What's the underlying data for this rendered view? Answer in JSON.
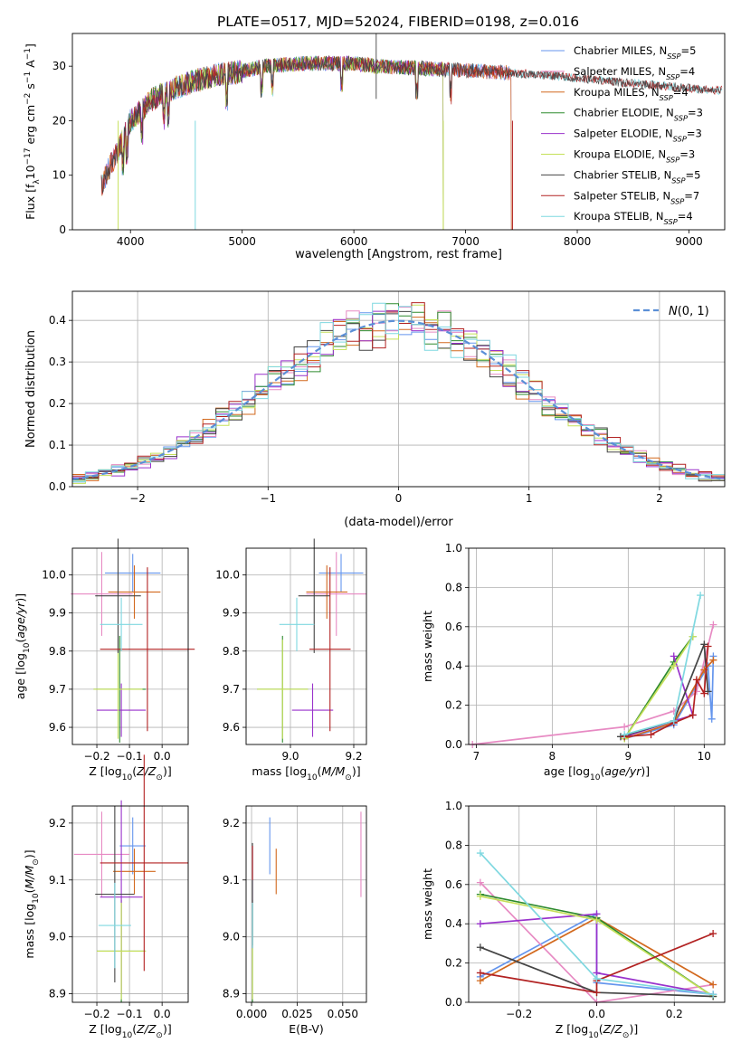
{
  "figure_title": "PLATE=0517, MJD=52024, FIBERID=0198, z=0.016",
  "colors": {
    "chabrier_miles": "#6495ed",
    "salpeter_miles": "#e78ac3",
    "kroupa_miles": "#d2691e",
    "chabrier_elodie": "#2e8b2e",
    "salpeter_elodie": "#9932cc",
    "kroupa_elodie": "#c5e05a",
    "chabrier_stelib": "#444444",
    "salpeter_stelib": "#b22222",
    "kroupa_stelib": "#7fd8e0",
    "normal_curve": "#5b8fd6",
    "grid": "#b0b0b0"
  },
  "chart_data": [
    {
      "id": "spectrum",
      "type": "line",
      "xlabel": "wavelength [Angstrom, rest frame]",
      "ylabel": "Flux [f_λ 10^-17 erg cm^-2 s^-1 A^-1]",
      "xlim": [
        3480,
        9320
      ],
      "ylim": [
        0,
        36
      ],
      "xticks": [
        4000,
        5000,
        6000,
        7000,
        8000,
        9000
      ],
      "yticks": [
        0,
        10,
        20,
        30
      ],
      "grid": false,
      "legend_position": "top-right",
      "legend": [
        {
          "label": "Chabrier MILES, N",
          "sub": "SSP",
          "suffix": "=5",
          "color_key": "chabrier_miles"
        },
        {
          "label": "Salpeter MILES, N",
          "sub": "SSP",
          "suffix": "=4",
          "color_key": "salpeter_miles"
        },
        {
          "label": "Kroupa MILES, N",
          "sub": "SSP",
          "suffix": "=4",
          "color_key": "kroupa_miles"
        },
        {
          "label": "Chabrier ELODIE, N",
          "sub": "SSP",
          "suffix": "=3",
          "color_key": "chabrier_elodie"
        },
        {
          "label": "Salpeter ELODIE, N",
          "sub": "SSP",
          "suffix": "=3",
          "color_key": "salpeter_elodie"
        },
        {
          "label": "Kroupa ELODIE, N",
          "sub": "SSP",
          "suffix": "=3",
          "color_key": "kroupa_elodie"
        },
        {
          "label": "Chabrier STELIB, N",
          "sub": "SSP",
          "suffix": "=5",
          "color_key": "chabrier_stelib"
        },
        {
          "label": "Salpeter STELIB, N",
          "sub": "SSP",
          "suffix": "=7",
          "color_key": "salpeter_stelib"
        },
        {
          "label": "Kroupa STELIB, N",
          "sub": "SSP",
          "suffix": "=4",
          "color_key": "kroupa_stelib"
        }
      ],
      "continuum": [
        [
          3740,
          8
        ],
        [
          3800,
          11
        ],
        [
          3900,
          15
        ],
        [
          4000,
          20
        ],
        [
          4100,
          22
        ],
        [
          4200,
          24
        ],
        [
          4400,
          26
        ],
        [
          4600,
          27.5
        ],
        [
          4800,
          28.5
        ],
        [
          5000,
          29
        ],
        [
          5200,
          30
        ],
        [
          5400,
          30.3
        ],
        [
          5600,
          30.5
        ],
        [
          5800,
          30.5
        ],
        [
          6000,
          30.5
        ],
        [
          6200,
          30
        ],
        [
          6400,
          29.8
        ],
        [
          6600,
          29.6
        ],
        [
          6800,
          29.4
        ],
        [
          7000,
          29.2
        ],
        [
          7200,
          29
        ],
        [
          7400,
          28.8
        ],
        [
          7600,
          28.5
        ],
        [
          7800,
          28.2
        ],
        [
          8000,
          27.8
        ],
        [
          8200,
          27.4
        ],
        [
          8400,
          27
        ],
        [
          8600,
          26.7
        ],
        [
          8800,
          26.3
        ],
        [
          9000,
          26
        ],
        [
          9200,
          25.6
        ]
      ],
      "series_extent": [
        {
          "key": "chabrier_miles",
          "x": [
            3740,
            7410
          ]
        },
        {
          "key": "salpeter_miles",
          "x": [
            3740,
            7410
          ]
        },
        {
          "key": "kroupa_miles",
          "x": [
            3740,
            7410
          ]
        },
        {
          "key": "chabrier_elodie",
          "x": [
            3900,
            6800
          ]
        },
        {
          "key": "salpeter_elodie",
          "x": [
            3900,
            6800
          ]
        },
        {
          "key": "kroupa_elodie",
          "x": [
            3900,
            6800
          ]
        },
        {
          "key": "chabrier_stelib",
          "x": [
            3740,
            9300
          ]
        },
        {
          "key": "salpeter_stelib",
          "x": [
            3740,
            9300
          ]
        },
        {
          "key": "kroupa_stelib",
          "x": [
            3740,
            9300
          ]
        }
      ]
    },
    {
      "id": "residuals",
      "type": "bar",
      "xlabel": "(data-model)/error",
      "ylabel": "Normed distribution",
      "xlim": [
        -2.5,
        2.5
      ],
      "ylim": [
        0,
        0.47
      ],
      "xticks": [
        -2,
        -1,
        0,
        1,
        2
      ],
      "yticks": [
        0.0,
        0.1,
        0.2,
        0.3,
        0.4
      ],
      "grid": true,
      "legend_position": "top-right",
      "legend_label": "N(0,1)",
      "bin_width": 0.1,
      "bins_start": -2.5,
      "envelope": "gaussian",
      "n_series": 9
    },
    {
      "id": "age_vs_Z",
      "type": "errorbar",
      "xlabel": "Z [log10(Z/Z⊙)]",
      "ylabel": "age [log10(age/yr)]",
      "xlim": [
        -0.275,
        0.08
      ],
      "ylim": [
        9.555,
        10.07
      ],
      "xticks": [
        -0.2,
        -0.1,
        0.0
      ],
      "yticks": [
        9.6,
        9.7,
        9.8,
        9.9,
        10.0
      ],
      "grid": true,
      "points": [
        {
          "key": "chabrier_miles",
          "x": -0.09,
          "xerr": 0.085,
          "y": 10.005,
          "yerr": 0.05
        },
        {
          "key": "salpeter_miles",
          "x": -0.185,
          "xerr": 0.095,
          "y": 9.95,
          "yerr": 0.11
        },
        {
          "key": "kroupa_miles",
          "x": -0.085,
          "xerr": 0.08,
          "y": 9.955,
          "yerr": 0.07
        },
        {
          "key": "chabrier_elodie",
          "x": -0.13,
          "xerr": 0.08,
          "y": 9.7,
          "yerr": 0.14
        },
        {
          "key": "salpeter_elodie",
          "x": -0.125,
          "xerr": 0.075,
          "y": 9.645,
          "yerr": 0.07
        },
        {
          "key": "kroupa_elodie",
          "x": -0.135,
          "xerr": 0.075,
          "y": 9.7,
          "yerr": 0.13
        },
        {
          "key": "chabrier_stelib",
          "x": -0.135,
          "xerr": 0.07,
          "y": 9.945,
          "yerr": 0.15
        },
        {
          "key": "salpeter_stelib",
          "x": -0.045,
          "xerr": 0.145,
          "y": 9.805,
          "yerr": 0.215
        },
        {
          "key": "kroupa_stelib",
          "x": -0.125,
          "xerr": 0.065,
          "y": 9.87,
          "yerr": 0.07
        }
      ]
    },
    {
      "id": "age_vs_mass",
      "type": "errorbar",
      "xlabel": "mass [log10(M/M⊙)]",
      "ylabel": "",
      "xlim": [
        8.86,
        9.24
      ],
      "ylim": [
        9.555,
        10.07
      ],
      "xticks": [
        9.0,
        9.2
      ],
      "yticks": [
        9.6,
        9.7,
        9.8,
        9.9,
        10.0
      ],
      "grid": true,
      "points": [
        {
          "key": "chabrier_miles",
          "x": 9.16,
          "xerr": 0.07,
          "y": 10.005,
          "yerr": 0.05
        },
        {
          "key": "salpeter_miles",
          "x": 9.145,
          "xerr": 0.095,
          "y": 9.95,
          "yerr": 0.11
        },
        {
          "key": "kroupa_miles",
          "x": 9.115,
          "xerr": 0.065,
          "y": 9.955,
          "yerr": 0.07
        },
        {
          "key": "chabrier_elodie",
          "x": 8.975,
          "xerr": 0.08,
          "y": 9.7,
          "yerr": 0.14
        },
        {
          "key": "salpeter_elodie",
          "x": 9.07,
          "xerr": 0.065,
          "y": 9.645,
          "yerr": 0.07
        },
        {
          "key": "kroupa_elodie",
          "x": 8.975,
          "xerr": 0.08,
          "y": 9.7,
          "yerr": 0.13
        },
        {
          "key": "chabrier_stelib",
          "x": 9.075,
          "xerr": 0.05,
          "y": 9.945,
          "yerr": 0.15
        },
        {
          "key": "salpeter_stelib",
          "x": 9.125,
          "xerr": 0.065,
          "y": 9.805,
          "yerr": 0.215
        },
        {
          "key": "kroupa_stelib",
          "x": 9.02,
          "xerr": 0.055,
          "y": 9.87,
          "yerr": 0.07
        }
      ]
    },
    {
      "id": "weight_vs_age",
      "type": "line",
      "xlabel": "age [log10(age/yr)]",
      "ylabel": "mass weight",
      "xlim": [
        6.9,
        10.27
      ],
      "ylim": [
        0,
        1.0
      ],
      "xticks": [
        7,
        8,
        9,
        10
      ],
      "yticks": [
        0.0,
        0.2,
        0.4,
        0.6,
        0.8,
        1.0
      ],
      "grid": true,
      "series": [
        {
          "key": "chabrier_miles",
          "x": [
            8.95,
            9.6,
            10.05,
            10.1,
            10.12
          ],
          "y": [
            0.03,
            0.1,
            0.4,
            0.13,
            0.45
          ]
        },
        {
          "key": "salpeter_miles",
          "x": [
            6.95,
            8.95,
            9.6,
            9.9,
            10.12
          ],
          "y": [
            0.0,
            0.09,
            0.17,
            0.27,
            0.61
          ]
        },
        {
          "key": "kroupa_miles",
          "x": [
            8.95,
            9.6,
            10.0,
            10.12
          ],
          "y": [
            0.03,
            0.11,
            0.38,
            0.43
          ]
        },
        {
          "key": "chabrier_elodie",
          "x": [
            8.95,
            9.6,
            9.85
          ],
          "y": [
            0.03,
            0.42,
            0.55
          ]
        },
        {
          "key": "salpeter_elodie",
          "x": [
            9.6,
            9.85,
            8.95
          ],
          "y": [
            0.45,
            0.15,
            0.04
          ]
        },
        {
          "key": "kroupa_elodie",
          "x": [
            8.95,
            9.6,
            9.85
          ],
          "y": [
            0.03,
            0.4,
            0.55
          ]
        },
        {
          "key": "chabrier_stelib",
          "x": [
            8.9,
            9.6,
            10.0,
            10.05
          ],
          "y": [
            0.04,
            0.12,
            0.51,
            0.27
          ]
        },
        {
          "key": "salpeter_stelib",
          "x": [
            8.95,
            9.3,
            9.6,
            9.85,
            9.9,
            10.0,
            10.05
          ],
          "y": [
            0.04,
            0.05,
            0.11,
            0.15,
            0.33,
            0.26,
            0.5
          ]
        },
        {
          "key": "kroupa_stelib",
          "x": [
            8.95,
            9.6,
            9.95
          ],
          "y": [
            0.05,
            0.12,
            0.76
          ]
        }
      ]
    },
    {
      "id": "mass_vs_Z",
      "type": "errorbar",
      "xlabel": "Z [log10(Z/Z⊙)]",
      "ylabel": "mass [log10(M/M⊙)]",
      "xlim": [
        -0.275,
        0.08
      ],
      "ylim": [
        8.885,
        9.23
      ],
      "xticks": [
        -0.2,
        -0.1,
        0.0
      ],
      "yticks": [
        8.9,
        9.0,
        9.1,
        9.2
      ],
      "grid": true,
      "points": [
        {
          "key": "chabrier_miles",
          "x": -0.09,
          "xerr": 0.04,
          "y": 9.16,
          "yerr": 0.05
        },
        {
          "key": "salpeter_miles",
          "x": -0.185,
          "xerr": 0.085,
          "y": 9.145,
          "yerr": 0.075
        },
        {
          "key": "kroupa_miles",
          "x": -0.085,
          "xerr": 0.065,
          "y": 9.115,
          "yerr": 0.04
        },
        {
          "key": "chabrier_elodie",
          "x": -0.125,
          "xerr": 0.075,
          "y": 8.975,
          "yerr": 0.09
        },
        {
          "key": "salpeter_elodie",
          "x": -0.125,
          "xerr": 0.065,
          "y": 9.07,
          "yerr": 0.17
        },
        {
          "key": "kroupa_elodie",
          "x": -0.125,
          "xerr": 0.075,
          "y": 8.975,
          "yerr": 0.085
        },
        {
          "key": "chabrier_stelib",
          "x": -0.145,
          "xerr": 0.06,
          "y": 9.075,
          "yerr": 0.155
        },
        {
          "key": "salpeter_stelib",
          "x": -0.055,
          "xerr": 0.135,
          "y": 9.13,
          "yerr": 0.19
        },
        {
          "key": "kroupa_stelib",
          "x": -0.145,
          "xerr": 0.05,
          "y": 9.02,
          "yerr": 0.075
        }
      ]
    },
    {
      "id": "mass_vs_ebv",
      "type": "errorbar",
      "xlabel": "E(B-V)",
      "ylabel": "",
      "xlim": [
        -0.003,
        0.063
      ],
      "ylim": [
        8.885,
        9.23
      ],
      "xticks": [
        0.0,
        0.025,
        0.05
      ],
      "yticks": [
        8.9,
        9.0,
        9.1,
        9.2
      ],
      "grid": true,
      "points": [
        {
          "key": "chabrier_miles",
          "x": 0.01,
          "y": 9.16,
          "yerr": 0.05
        },
        {
          "key": "salpeter_miles",
          "x": 0.06,
          "y": 9.145,
          "yerr": 0.075
        },
        {
          "key": "kroupa_miles",
          "x": 0.0135,
          "y": 9.115,
          "yerr": 0.04
        },
        {
          "key": "chabrier_elodie",
          "x": 0.0005,
          "y": 8.975,
          "yerr": 0.09
        },
        {
          "key": "salpeter_elodie",
          "x": 0.0005,
          "y": 9.07,
          "yerr": 0.09
        },
        {
          "key": "kroupa_elodie",
          "x": 0.0005,
          "y": 8.975,
          "yerr": 0.085
        },
        {
          "key": "chabrier_stelib",
          "x": 0.0005,
          "y": 9.075,
          "yerr": 0.09
        },
        {
          "key": "salpeter_stelib",
          "x": 0.0005,
          "y": 9.13,
          "yerr": 0.03
        },
        {
          "key": "kroupa_stelib",
          "x": 0.0005,
          "y": 9.02,
          "yerr": 0.04
        }
      ]
    },
    {
      "id": "weight_vs_Z",
      "type": "line",
      "xlabel": "Z [log10(Z/Z⊙)]",
      "ylabel": "mass weight",
      "xlim": [
        -0.33,
        0.33
      ],
      "ylim": [
        0,
        1.0
      ],
      "xticks": [
        -0.2,
        0.0,
        0.2
      ],
      "yticks": [
        0.0,
        0.2,
        0.4,
        0.6,
        0.8,
        1.0
      ],
      "grid": true,
      "series": [
        {
          "key": "chabrier_miles",
          "x": [
            -0.3,
            0.0,
            0.0,
            0.3
          ],
          "y": [
            0.13,
            0.45,
            0.1,
            0.04
          ]
        },
        {
          "key": "salpeter_miles",
          "x": [
            -0.3,
            0.0,
            0.3
          ],
          "y": [
            0.61,
            0.0,
            0.09
          ]
        },
        {
          "key": "kroupa_miles",
          "x": [
            -0.3,
            0.0,
            0.3
          ],
          "y": [
            0.11,
            0.43,
            0.09
          ]
        },
        {
          "key": "chabrier_elodie",
          "x": [
            -0.3,
            0.0,
            0.3
          ],
          "y": [
            0.55,
            0.43,
            0.03
          ]
        },
        {
          "key": "salpeter_elodie",
          "x": [
            -0.3,
            0.0,
            0.0,
            0.3
          ],
          "y": [
            0.4,
            0.45,
            0.15,
            0.04
          ]
        },
        {
          "key": "kroupa_elodie",
          "x": [
            -0.3,
            0.0,
            0.3
          ],
          "y": [
            0.54,
            0.42,
            0.03
          ]
        },
        {
          "key": "chabrier_stelib",
          "x": [
            -0.3,
            0.0,
            0.3
          ],
          "y": [
            0.28,
            0.05,
            0.03
          ]
        },
        {
          "key": "salpeter_stelib",
          "x": [
            -0.3,
            0.0,
            0.0,
            0.3
          ],
          "y": [
            0.15,
            0.05,
            0.11,
            0.35
          ]
        },
        {
          "key": "kroupa_stelib",
          "x": [
            -0.3,
            0.0,
            0.3
          ],
          "y": [
            0.76,
            0.12,
            0.04
          ]
        }
      ]
    }
  ]
}
